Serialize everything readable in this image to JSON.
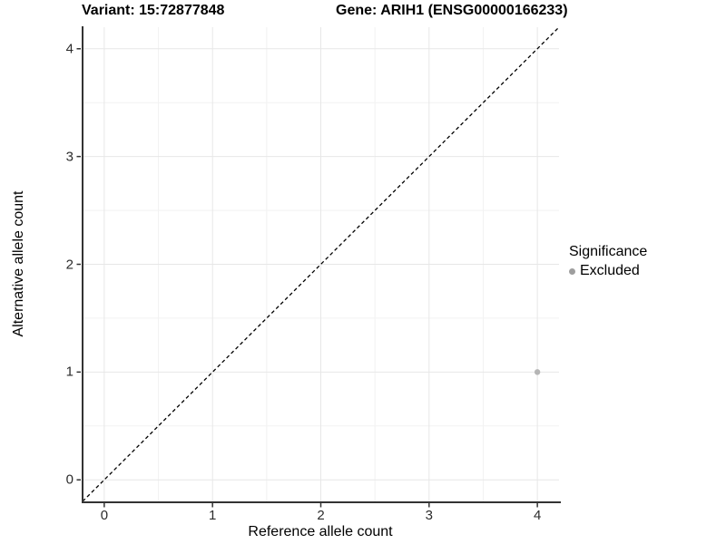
{
  "figure": {
    "title_left": "Variant: 15:72877848",
    "title_right": "Gene: ARIH1 (ENSG00000166233)"
  },
  "chart_data": {
    "type": "scatter",
    "title": "Variant: 15:72877848   Gene: ARIH1 (ENSG00000166233)",
    "xlabel": "Reference allele count",
    "ylabel": "Alternative allele count",
    "xlim": [
      -0.2,
      4.2
    ],
    "ylim": [
      -0.2,
      4.2
    ],
    "xticks": [
      0,
      1,
      2,
      3,
      4
    ],
    "yticks": [
      0,
      1,
      2,
      3,
      4
    ],
    "xminor": [
      0.5,
      1.5,
      2.5,
      3.5
    ],
    "yminor": [
      0.5,
      1.5,
      2.5,
      3.5
    ],
    "grid": {
      "major_color": "#e7e7e7",
      "minor_color": "#f2f2f2",
      "on": true
    },
    "axis_line_color": "#333333",
    "abline": {
      "slope": 1,
      "intercept": 0,
      "style": "dashed",
      "color": "#000000"
    },
    "series": [
      {
        "name": "Excluded",
        "color": "#b5b5b5",
        "points": [
          {
            "x": 4,
            "y": 1
          }
        ]
      }
    ],
    "legend": {
      "position": "right",
      "title": "Significance",
      "items": [
        {
          "label": "Excluded",
          "color": "#9e9e9e"
        }
      ]
    }
  }
}
